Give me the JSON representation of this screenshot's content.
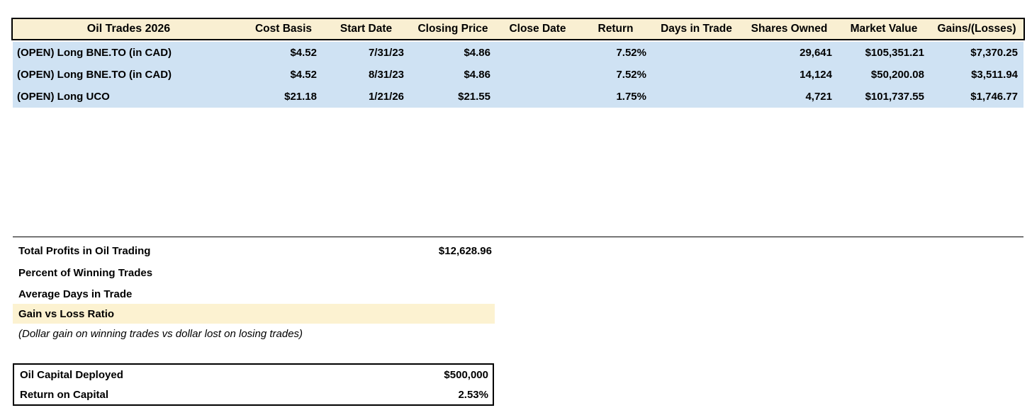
{
  "table": {
    "title": "Oil Trades 2026",
    "columns": [
      "Cost Basis",
      "Start Date",
      "Closing Price",
      "Close Date",
      "Return",
      "Days in Trade",
      "Shares Owned",
      "Market Value",
      "Gains/(Losses)"
    ],
    "rows": [
      {
        "name": "(OPEN) Long BNE.TO (in CAD)",
        "cost_basis": "$4.52",
        "start_date": "7/31/23",
        "closing_price": "$4.86",
        "close_date": "",
        "return": "7.52%",
        "days_in_trade": "",
        "shares_owned": "29,641",
        "market_value": "$105,351.21",
        "gains_losses": "$7,370.25"
      },
      {
        "name": "(OPEN) Long BNE.TO (in CAD)",
        "cost_basis": "$4.52",
        "start_date": "8/31/23",
        "closing_price": "$4.86",
        "close_date": "",
        "return": "7.52%",
        "days_in_trade": "",
        "shares_owned": "14,124",
        "market_value": "$50,200.08",
        "gains_losses": "$3,511.94"
      },
      {
        "name": "(OPEN) Long UCO",
        "cost_basis": "$21.18",
        "start_date": "1/21/26",
        "closing_price": "$21.55",
        "close_date": "",
        "return": "1.75%",
        "days_in_trade": "",
        "shares_owned": "4,721",
        "market_value": "$101,737.55",
        "gains_losses": "$1,746.77"
      }
    ]
  },
  "summary": {
    "rows": [
      {
        "label": "Total Profits in Oil Trading",
        "value": "$12,628.96"
      },
      {
        "label": "Percent of Winning Trades",
        "value": ""
      },
      {
        "label": "Average Days in Trade",
        "value": ""
      },
      {
        "label": "Gain vs Loss Ratio",
        "value": ""
      }
    ],
    "note": "(Dollar gain on winning trades vs dollar lost on losing trades)"
  },
  "capital": {
    "rows": [
      {
        "label": "Oil Capital Deployed",
        "value": "$500,000"
      },
      {
        "label": "Return on Capital",
        "value": "2.53%"
      }
    ]
  },
  "colors": {
    "header_bg": "#f9efd2",
    "row_bg": "#cfe2f3",
    "highlight_bg": "#fcf2d1",
    "border": "#000000",
    "text": "#000000"
  }
}
